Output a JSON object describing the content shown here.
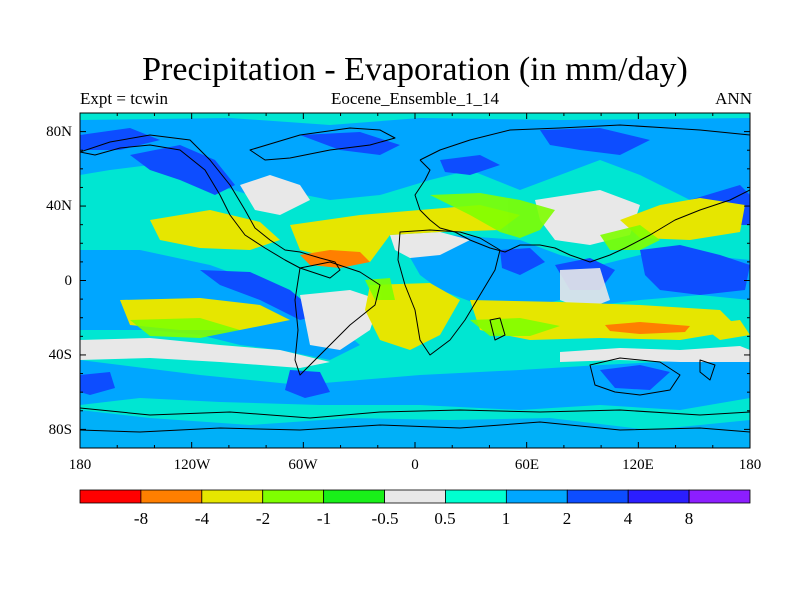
{
  "title": "Precipitation - Evaporation (in mm/day)",
  "subtitle_left": "Expt = tcwin",
  "subtitle_center": "Eocene_Ensemble_1_14",
  "subtitle_right": "ANN",
  "map": {
    "projection": "cylindrical-equidistant",
    "lon_range": [
      -180,
      180
    ],
    "lat_range": [
      -90,
      90
    ],
    "x_tick_labels": [
      "180",
      "120W",
      "60W",
      "0",
      "60E",
      "120E",
      "180"
    ],
    "y_tick_labels": [
      "80N",
      "40N",
      "0",
      "40S",
      "80S"
    ],
    "background_color": "#00e6d2"
  },
  "colorbar": {
    "colors": [
      "#ff0000",
      "#ff7f00",
      "#e6e600",
      "#7fff00",
      "#19f019",
      "#e8e8e8",
      "#00ffd0",
      "#00a6ff",
      "#0d4dff",
      "#2b1eff",
      "#8c1eff"
    ],
    "labels": [
      "-8",
      "-4",
      "-2",
      "-1",
      "-0.5",
      "0.5",
      "1",
      "2",
      "4",
      "8"
    ]
  }
}
